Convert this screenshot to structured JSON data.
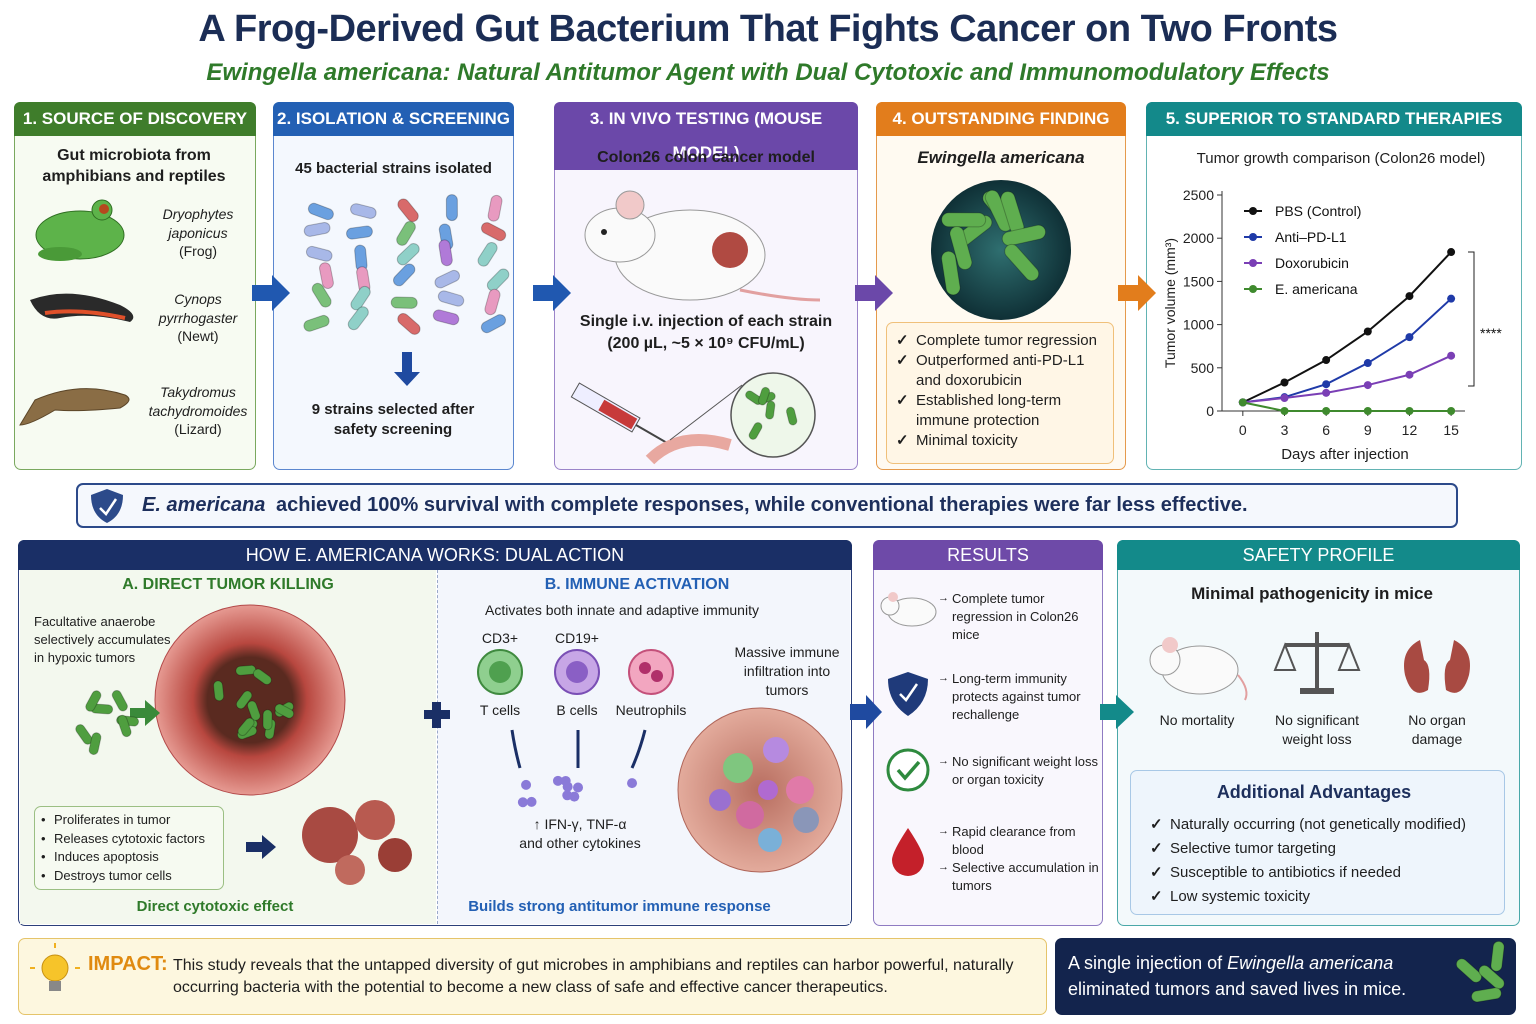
{
  "header": {
    "title": "A Frog-Derived Gut Bacterium That Fights Cancer on Two Fronts",
    "subtitle": "Ewingella americana: Natural Antitumor Agent with Dual Cytotoxic and Immunomodulatory Effects"
  },
  "source": {
    "title": "1. SOURCE OF DISCOVERY",
    "intro": "Gut microbiota from amphibians and reptiles",
    "species": [
      {
        "name": "Dryophytes japonicus",
        "common": "(Frog)"
      },
      {
        "name": "Cynops pyrrhogaster",
        "common": "(Newt)"
      },
      {
        "name": "Takydromus tachydromoides",
        "common": "(Lizard)"
      }
    ]
  },
  "isolation": {
    "title": "2. ISOLATION & SCREENING",
    "isolated": "45 bacterial strains isolated",
    "selected": "9 strains selected after safety screening"
  },
  "in_vivo": {
    "title": "3. IN VIVO TESTING (MOUSE MODEL)",
    "model": "Colon26 colon cancer model",
    "injection": "Single i.v. injection of each strain",
    "dose": "(200 µL, ~5 × 10⁹ CFU/mL)"
  },
  "finding": {
    "title": "4. OUTSTANDING FINDING",
    "organism": "Ewingella americana",
    "points": [
      "Complete tumor regression",
      "Outperformed anti-PD-L1 and doxorubicin",
      "Established long-term immune protection",
      "Minimal toxicity"
    ]
  },
  "comparison": {
    "title": "5. SUPERIOR TO STANDARD THERAPIES",
    "chart": {
      "type": "line",
      "title": "Tumor growth comparison (Colon26 model)",
      "x_label": "Days after injection",
      "y_label": "Tumor volume (mm³)",
      "x": [
        0,
        3,
        6,
        9,
        12,
        15
      ],
      "xlim": [
        -1.5,
        16
      ],
      "xticks": [
        0,
        3,
        6,
        9,
        12,
        15
      ],
      "ylim": [
        0,
        2500
      ],
      "yticks": [
        0,
        500,
        1000,
        1500,
        2000,
        2500
      ],
      "series": [
        {
          "name": "PBS (Control)",
          "color": "#111111",
          "values": [
            100,
            330,
            590,
            920,
            1330,
            1840
          ]
        },
        {
          "name": "Anti–PD-L1",
          "color": "#1f3aa8",
          "values": [
            100,
            160,
            310,
            555,
            855,
            1300
          ]
        },
        {
          "name": "Doxorubicin",
          "color": "#7a3fb5",
          "values": [
            100,
            150,
            210,
            300,
            420,
            640
          ]
        },
        {
          "name": "E. americana",
          "color": "#3f8a2e",
          "values": [
            100,
            0,
            0,
            0,
            0,
            0
          ]
        }
      ],
      "annotation": "****"
    }
  },
  "banner": {
    "organism": "E. americana",
    "text": "achieved 100% survival with complete responses, while conventional therapies were far less effective."
  },
  "mechanism": {
    "title": "HOW E. AMERICANA WORKS: DUAL ACTION",
    "direct": {
      "title": "A. DIRECT TUMOR KILLING",
      "note": "Facultative anaerobe selectively accumulates in hypoxic tumors",
      "steps": [
        "Proliferates in tumor",
        "Releases cytotoxic factors",
        "Induces apoptosis",
        "Destroys tumor cells"
      ],
      "footer": "Direct cytotoxic effect"
    },
    "immune": {
      "title": "B. IMMUNE ACTIVATION",
      "subtitle": "Activates both innate and adaptive immunity",
      "cells": [
        {
          "marker": "CD3+",
          "name": "T cells"
        },
        {
          "marker": "CD19+",
          "name": "B cells"
        },
        {
          "name": "Neutrophils"
        }
      ],
      "cytokines": "↑ IFN-γ, TNF-α",
      "cytokines_more": "and other cytokines",
      "infiltration": "Massive immune infiltration into tumors",
      "footer": "Builds strong antitumor immune response"
    }
  },
  "results": {
    "title": "RESULTS",
    "items": [
      [
        "Complete tumor regression in Colon26 mice"
      ],
      [
        "Long-term immunity protects against tumor rechallenge"
      ],
      [
        "No significant weight loss or organ toxicity"
      ],
      [
        "Rapid clearance from blood",
        "Selective accumulation in tumors"
      ]
    ]
  },
  "safety": {
    "title": "SAFETY PROFILE",
    "subtitle": "Minimal pathogenicity in mice",
    "items": [
      "No mortality",
      "No significant weight loss",
      "No organ damage"
    ],
    "advantages_title": "Additional Advantages",
    "advantages": [
      "Naturally occurring (not genetically modified)",
      "Selective tumor targeting",
      "Susceptible to antibiotics if needed",
      "Low systemic toxicity"
    ]
  },
  "impact": {
    "label": "IMPACT:",
    "text": "This study reveals that the untapped diversity of gut microbes in amphibians and reptiles can harbor powerful, naturally occurring bacteria with the potential to become a new class of safe and effective cancer therapeutics."
  },
  "takeaway": {
    "text_before": "A single injection of",
    "organism": "Ewingella americana",
    "text_after": "eliminated tumors and saved lives in mice."
  }
}
